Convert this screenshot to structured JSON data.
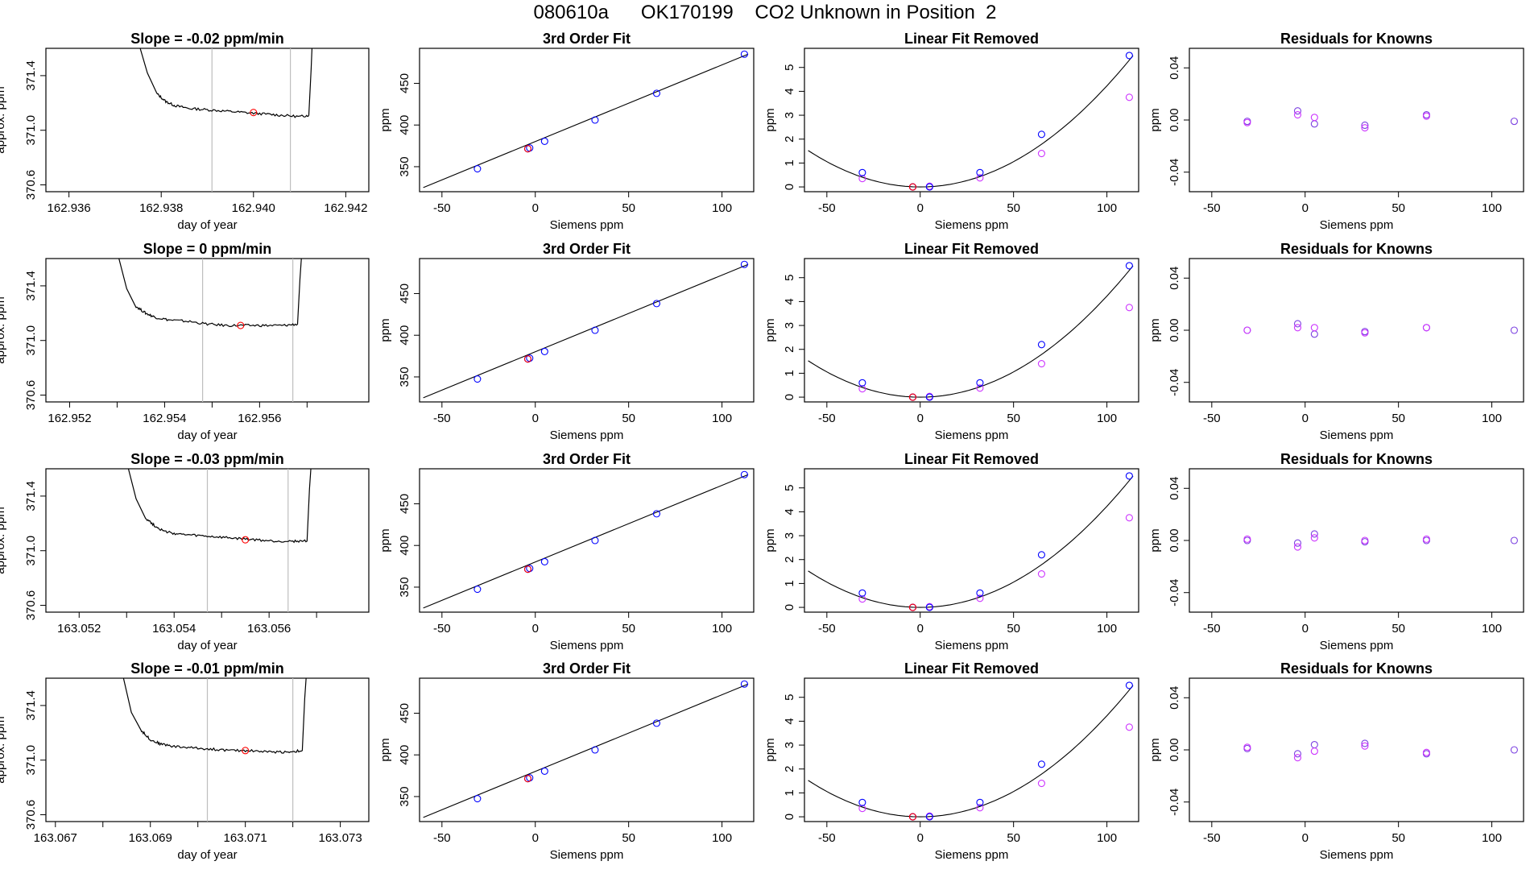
{
  "figure": {
    "title": "080610a      OK170199    CO2 Unknown in Position  2"
  },
  "colors": {
    "trace": "#000000",
    "marker_red": "#ff0000",
    "marker_blue": "#0000ff",
    "marker_magenta": "#cc33ff",
    "vline": "#bebebe",
    "residual": "#7a3fe0"
  },
  "chart_data": [
    {
      "type": "line",
      "row": 0,
      "col": 0,
      "title": "Slope =  -0.02  ppm/min",
      "xlabel": "day of year",
      "ylabel": "approx. ppm",
      "xlim": [
        162.9355,
        162.9425
      ],
      "ylim": [
        370.55,
        371.6
      ],
      "xticks": [
        162.936,
        162.938,
        162.94,
        162.942
      ],
      "xtick_labels": [
        "162.936",
        "162.938",
        "162.940",
        "162.942"
      ],
      "yticks": [
        370.6,
        371.0,
        371.4
      ],
      "ytick_labels": [
        "370.6",
        "371.0",
        "371.4"
      ],
      "x": [
        162.9375,
        162.9377,
        162.9379,
        162.9381,
        162.9383,
        162.9386,
        162.939,
        162.9394,
        162.9398,
        162.9402,
        162.9406,
        162.941,
        162.9412,
        162.94125,
        162.94128
      ],
      "y": [
        371.65,
        371.42,
        371.27,
        371.21,
        371.18,
        371.16,
        371.15,
        371.14,
        371.13,
        371.12,
        371.11,
        371.1,
        371.11,
        371.45,
        371.7
      ],
      "vlines": [
        162.9391,
        162.9408
      ],
      "marker": {
        "x": 162.94,
        "y": 371.13
      }
    },
    {
      "type": "scatter",
      "row": 0,
      "col": 1,
      "title": "3rd Order Fit",
      "xlabel": "Siemens ppm",
      "ylabel": "ppm",
      "xlim": [
        -62,
        117
      ],
      "ylim": [
        320,
        492
      ],
      "xticks": [
        -50,
        0,
        50,
        100
      ],
      "yticks": [
        350,
        400,
        450
      ],
      "line": {
        "x": [
          -60,
          114
        ],
        "y": [
          325,
          485
        ]
      },
      "points": [
        {
          "x": -31,
          "y": 347.5
        },
        {
          "x": -4,
          "y": 371.5
        },
        {
          "x": -3,
          "y": 372.5
        },
        {
          "x": 5,
          "y": 380.5
        },
        {
          "x": 32,
          "y": 406
        },
        {
          "x": 65,
          "y": 438
        },
        {
          "x": 112,
          "y": 485
        }
      ],
      "marker": {
        "x": -4,
        "y": 371.5
      }
    },
    {
      "type": "scatter",
      "row": 0,
      "col": 2,
      "title": "Linear Fit Removed",
      "xlabel": "Siemens ppm",
      "ylabel": "ppm",
      "xlim": [
        -62,
        117
      ],
      "ylim": [
        -0.2,
        5.8
      ],
      "xticks": [
        -50,
        0,
        50,
        100
      ],
      "yticks": [
        0,
        1,
        2,
        3,
        4,
        5
      ],
      "curve_coef": 0.000423,
      "curve_x": [
        -60,
        114
      ],
      "blue": [
        {
          "x": -31,
          "y": 0.6
        },
        {
          "x": -4,
          "y": 0
        },
        {
          "x": 5,
          "y": 0
        },
        {
          "x": 32,
          "y": 0.6
        },
        {
          "x": 65,
          "y": 2.2
        },
        {
          "x": 112,
          "y": 5.5
        }
      ],
      "magenta": [
        {
          "x": -31,
          "y": 0.35
        },
        {
          "x": -4,
          "y": 0
        },
        {
          "x": 5,
          "y": 0.03
        },
        {
          "x": 32,
          "y": 0.38
        },
        {
          "x": 65,
          "y": 1.4
        },
        {
          "x": 112,
          "y": 3.75
        }
      ],
      "marker": {
        "x": -4,
        "y": 0
      }
    },
    {
      "type": "scatter",
      "row": 0,
      "col": 3,
      "title": "Residuals for Knowns",
      "xlabel": "Siemens ppm",
      "ylabel": "ppm",
      "xlim": [
        -62,
        117
      ],
      "ylim": [
        -0.055,
        0.055
      ],
      "xticks": [
        -50,
        0,
        50,
        100
      ],
      "yticks": [
        -0.04,
        0,
        0.04
      ],
      "ytick_labels": [
        "-0.04",
        "0.00",
        "0.04"
      ],
      "points": [
        {
          "x": -31,
          "y": -0.001
        },
        {
          "x": -31,
          "y": -0.002
        },
        {
          "x": -4,
          "y": 0.007
        },
        {
          "x": -4,
          "y": 0.004
        },
        {
          "x": 5,
          "y": -0.003
        },
        {
          "x": 5,
          "y": 0.002
        },
        {
          "x": 32,
          "y": -0.004
        },
        {
          "x": 32,
          "y": -0.006
        },
        {
          "x": 65,
          "y": 0.004
        },
        {
          "x": 65,
          "y": 0.003
        },
        {
          "x": 112,
          "y": -0.001
        }
      ]
    },
    {
      "type": "line",
      "row": 1,
      "col": 0,
      "title": "Slope =  0  ppm/min",
      "xlabel": "day of year",
      "ylabel": "approx. ppm",
      "xlim": [
        162.9515,
        162.9583
      ],
      "ylim": [
        370.55,
        371.6
      ],
      "xticks": [
        162.952,
        162.954,
        162.956
      ],
      "xtick_labels": [
        "162.952",
        "162.954",
        "162.956"
      ],
      "minor_xticks": [
        162.953,
        162.955,
        162.957
      ],
      "yticks": [
        370.6,
        371.0,
        371.4
      ],
      "ytick_labels": [
        "370.6",
        "371.0",
        "371.4"
      ],
      "x": [
        162.953,
        162.9532,
        162.9534,
        162.9536,
        162.9538,
        162.9541,
        162.9545,
        162.9549,
        162.9553,
        162.9557,
        162.9561,
        162.9565,
        162.9568,
        162.95685,
        162.9569
      ],
      "y": [
        371.65,
        371.38,
        371.25,
        371.2,
        371.17,
        371.15,
        371.14,
        371.12,
        371.11,
        371.11,
        371.11,
        371.11,
        371.12,
        371.45,
        371.7
      ],
      "vlines": [
        162.9548,
        162.9567
      ],
      "marker": {
        "x": 162.9556,
        "y": 371.11
      }
    },
    {
      "type": "scatter",
      "row": 1,
      "col": 1,
      "title": "3rd Order Fit",
      "xlabel": "Siemens ppm",
      "ylabel": "ppm",
      "xlim": [
        -62,
        117
      ],
      "ylim": [
        320,
        492
      ],
      "xticks": [
        -50,
        0,
        50,
        100
      ],
      "yticks": [
        350,
        400,
        450
      ],
      "line": {
        "x": [
          -60,
          114
        ],
        "y": [
          325,
          485
        ]
      },
      "points": [
        {
          "x": -31,
          "y": 347.5
        },
        {
          "x": -4,
          "y": 371.5
        },
        {
          "x": -3,
          "y": 372.5
        },
        {
          "x": 5,
          "y": 380.5
        },
        {
          "x": 32,
          "y": 406
        },
        {
          "x": 65,
          "y": 438
        },
        {
          "x": 112,
          "y": 485
        }
      ],
      "marker": {
        "x": -4,
        "y": 371.5
      }
    },
    {
      "type": "scatter",
      "row": 1,
      "col": 2,
      "title": "Linear Fit Removed",
      "xlabel": "Siemens ppm",
      "ylabel": "ppm",
      "xlim": [
        -62,
        117
      ],
      "ylim": [
        -0.2,
        5.8
      ],
      "xticks": [
        -50,
        0,
        50,
        100
      ],
      "yticks": [
        0,
        1,
        2,
        3,
        4,
        5
      ],
      "curve_coef": 0.000423,
      "curve_x": [
        -60,
        114
      ],
      "blue": [
        {
          "x": -31,
          "y": 0.6
        },
        {
          "x": -4,
          "y": 0
        },
        {
          "x": 5,
          "y": 0
        },
        {
          "x": 32,
          "y": 0.6
        },
        {
          "x": 65,
          "y": 2.2
        },
        {
          "x": 112,
          "y": 5.5
        }
      ],
      "magenta": [
        {
          "x": -31,
          "y": 0.35
        },
        {
          "x": -4,
          "y": 0
        },
        {
          "x": 5,
          "y": 0.03
        },
        {
          "x": 32,
          "y": 0.38
        },
        {
          "x": 65,
          "y": 1.4
        },
        {
          "x": 112,
          "y": 3.75
        }
      ],
      "marker": {
        "x": -4,
        "y": 0
      }
    },
    {
      "type": "scatter",
      "row": 1,
      "col": 3,
      "title": "Residuals for Knowns",
      "xlabel": "Siemens ppm",
      "ylabel": "ppm",
      "xlim": [
        -62,
        117
      ],
      "ylim": [
        -0.055,
        0.055
      ],
      "xticks": [
        -50,
        0,
        50,
        100
      ],
      "yticks": [
        -0.04,
        0,
        0.04
      ],
      "ytick_labels": [
        "-0.04",
        "0.00",
        "0.04"
      ],
      "points": [
        {
          "x": -31,
          "y": 0
        },
        {
          "x": -31,
          "y": 0
        },
        {
          "x": -4,
          "y": 0.005
        },
        {
          "x": -4,
          "y": 0.002
        },
        {
          "x": 5,
          "y": -0.003
        },
        {
          "x": 5,
          "y": 0.002
        },
        {
          "x": 32,
          "y": -0.001
        },
        {
          "x": 32,
          "y": -0.002
        },
        {
          "x": 65,
          "y": 0.002
        },
        {
          "x": 65,
          "y": 0.002
        },
        {
          "x": 112,
          "y": 0
        }
      ]
    },
    {
      "type": "line",
      "row": 2,
      "col": 0,
      "title": "Slope =  -0.03  ppm/min",
      "xlabel": "day of year",
      "ylabel": "approx. ppm",
      "xlim": [
        163.0513,
        163.0581
      ],
      "ylim": [
        370.55,
        371.6
      ],
      "xticks": [
        163.052,
        163.054,
        163.056
      ],
      "xtick_labels": [
        "163.052",
        "163.054",
        "163.056"
      ],
      "minor_xticks": [
        163.053,
        163.055,
        163.057
      ],
      "yticks": [
        370.6,
        371.0,
        371.4
      ],
      "ytick_labels": [
        "370.6",
        "371.0",
        "371.4"
      ],
      "x": [
        163.053,
        163.0532,
        163.0534,
        163.0536,
        163.0538,
        163.0541,
        163.0545,
        163.0549,
        163.0553,
        163.0557,
        163.0561,
        163.0565,
        163.0568,
        163.05685,
        163.0569
      ],
      "y": [
        371.65,
        371.38,
        371.24,
        371.18,
        371.14,
        371.12,
        371.11,
        371.1,
        371.09,
        371.08,
        371.07,
        371.07,
        371.07,
        371.45,
        371.7
      ],
      "vlines": [
        163.0547,
        163.0564
      ],
      "marker": {
        "x": 163.0555,
        "y": 371.08
      }
    },
    {
      "type": "scatter",
      "row": 2,
      "col": 1,
      "title": "3rd Order Fit",
      "xlabel": "Siemens ppm",
      "ylabel": "ppm",
      "xlim": [
        -62,
        117
      ],
      "ylim": [
        320,
        492
      ],
      "xticks": [
        -50,
        0,
        50,
        100
      ],
      "yticks": [
        350,
        400,
        450
      ],
      "line": {
        "x": [
          -60,
          114
        ],
        "y": [
          325,
          485
        ]
      },
      "points": [
        {
          "x": -31,
          "y": 347.5
        },
        {
          "x": -4,
          "y": 371.5
        },
        {
          "x": -3,
          "y": 372.5
        },
        {
          "x": 5,
          "y": 380.5
        },
        {
          "x": 32,
          "y": 406
        },
        {
          "x": 65,
          "y": 438
        },
        {
          "x": 112,
          "y": 485
        }
      ],
      "marker": {
        "x": -4,
        "y": 371.5
      }
    },
    {
      "type": "scatter",
      "row": 2,
      "col": 2,
      "title": "Linear Fit Removed",
      "xlabel": "Siemens ppm",
      "ylabel": "ppm",
      "xlim": [
        -62,
        117
      ],
      "ylim": [
        -0.2,
        5.8
      ],
      "xticks": [
        -50,
        0,
        50,
        100
      ],
      "yticks": [
        0,
        1,
        2,
        3,
        4,
        5
      ],
      "curve_coef": 0.000423,
      "curve_x": [
        -60,
        114
      ],
      "blue": [
        {
          "x": -31,
          "y": 0.6
        },
        {
          "x": -4,
          "y": 0
        },
        {
          "x": 5,
          "y": 0
        },
        {
          "x": 32,
          "y": 0.6
        },
        {
          "x": 65,
          "y": 2.2
        },
        {
          "x": 112,
          "y": 5.5
        }
      ],
      "magenta": [
        {
          "x": -31,
          "y": 0.35
        },
        {
          "x": -4,
          "y": 0
        },
        {
          "x": 5,
          "y": 0.03
        },
        {
          "x": 32,
          "y": 0.38
        },
        {
          "x": 65,
          "y": 1.4
        },
        {
          "x": 112,
          "y": 3.75
        }
      ],
      "marker": {
        "x": -4,
        "y": 0
      }
    },
    {
      "type": "scatter",
      "row": 2,
      "col": 3,
      "title": "Residuals for Knowns",
      "xlabel": "Siemens ppm",
      "ylabel": "ppm",
      "xlim": [
        -62,
        117
      ],
      "ylim": [
        -0.055,
        0.055
      ],
      "xticks": [
        -50,
        0,
        50,
        100
      ],
      "yticks": [
        -0.04,
        0,
        0.04
      ],
      "ytick_labels": [
        "-0.04",
        "0.00",
        "0.04"
      ],
      "points": [
        {
          "x": -31,
          "y": 0
        },
        {
          "x": -31,
          "y": 0.001
        },
        {
          "x": -4,
          "y": -0.002
        },
        {
          "x": -4,
          "y": -0.005
        },
        {
          "x": 5,
          "y": 0.005
        },
        {
          "x": 5,
          "y": 0.002
        },
        {
          "x": 32,
          "y": -0.001
        },
        {
          "x": 32,
          "y": 0
        },
        {
          "x": 65,
          "y": 0
        },
        {
          "x": 65,
          "y": 0.001
        },
        {
          "x": 112,
          "y": 0
        }
      ]
    },
    {
      "type": "line",
      "row": 3,
      "col": 0,
      "title": "Slope =  -0.01  ppm/min",
      "xlabel": "day of year",
      "ylabel": "approx. ppm",
      "xlim": [
        163.0668,
        163.0736
      ],
      "ylim": [
        370.55,
        371.6
      ],
      "xticks": [
        163.067,
        163.069,
        163.071,
        163.073
      ],
      "xtick_labels": [
        "163.067",
        "163.069",
        "163.071",
        "163.073"
      ],
      "minor_xticks": [
        163.068,
        163.07,
        163.072
      ],
      "yticks": [
        370.6,
        371.0,
        371.4
      ],
      "ytick_labels": [
        "370.6",
        "371.0",
        "371.4"
      ],
      "x": [
        163.0684,
        163.0686,
        163.0688,
        163.069,
        163.0692,
        163.0695,
        163.0699,
        163.0703,
        163.0707,
        163.0711,
        163.0715,
        163.0719,
        163.0722,
        163.07225,
        163.0723
      ],
      "y": [
        371.65,
        371.35,
        371.22,
        371.15,
        371.12,
        371.1,
        371.09,
        371.08,
        371.07,
        371.07,
        371.06,
        371.06,
        371.07,
        371.45,
        371.7
      ],
      "vlines": [
        163.0702,
        163.072
      ],
      "marker": {
        "x": 163.071,
        "y": 371.07
      }
    },
    {
      "type": "scatter",
      "row": 3,
      "col": 1,
      "title": "3rd Order Fit",
      "xlabel": "Siemens ppm",
      "ylabel": "ppm",
      "xlim": [
        -62,
        117
      ],
      "ylim": [
        320,
        492
      ],
      "xticks": [
        -50,
        0,
        50,
        100
      ],
      "yticks": [
        350,
        400,
        450
      ],
      "line": {
        "x": [
          -60,
          114
        ],
        "y": [
          325,
          485
        ]
      },
      "points": [
        {
          "x": -31,
          "y": 347.5
        },
        {
          "x": -4,
          "y": 371.5
        },
        {
          "x": -3,
          "y": 372.5
        },
        {
          "x": 5,
          "y": 380.5
        },
        {
          "x": 32,
          "y": 406
        },
        {
          "x": 65,
          "y": 438
        },
        {
          "x": 112,
          "y": 485
        }
      ],
      "marker": {
        "x": -4,
        "y": 371.5
      }
    },
    {
      "type": "scatter",
      "row": 3,
      "col": 2,
      "title": "Linear Fit Removed",
      "xlabel": "Siemens ppm",
      "ylabel": "ppm",
      "xlim": [
        -62,
        117
      ],
      "ylim": [
        -0.2,
        5.8
      ],
      "xticks": [
        -50,
        0,
        50,
        100
      ],
      "yticks": [
        0,
        1,
        2,
        3,
        4,
        5
      ],
      "curve_coef": 0.000423,
      "curve_x": [
        -60,
        114
      ],
      "blue": [
        {
          "x": -31,
          "y": 0.6
        },
        {
          "x": -4,
          "y": 0
        },
        {
          "x": 5,
          "y": 0
        },
        {
          "x": 32,
          "y": 0.6
        },
        {
          "x": 65,
          "y": 2.2
        },
        {
          "x": 112,
          "y": 5.5
        }
      ],
      "magenta": [
        {
          "x": -31,
          "y": 0.35
        },
        {
          "x": -4,
          "y": 0
        },
        {
          "x": 5,
          "y": 0.03
        },
        {
          "x": 32,
          "y": 0.38
        },
        {
          "x": 65,
          "y": 1.4
        },
        {
          "x": 112,
          "y": 3.75
        }
      ],
      "marker": {
        "x": -4,
        "y": 0
      }
    },
    {
      "type": "scatter",
      "row": 3,
      "col": 3,
      "title": "Residuals for Knowns",
      "xlabel": "Siemens ppm",
      "ylabel": "ppm",
      "xlim": [
        -62,
        117
      ],
      "ylim": [
        -0.055,
        0.055
      ],
      "xticks": [
        -50,
        0,
        50,
        100
      ],
      "yticks": [
        -0.04,
        0,
        0.04
      ],
      "ytick_labels": [
        "-0.04",
        "0.00",
        "0.04"
      ],
      "points": [
        {
          "x": -31,
          "y": 0.001
        },
        {
          "x": -31,
          "y": 0.002
        },
        {
          "x": -4,
          "y": -0.003
        },
        {
          "x": -4,
          "y": -0.006
        },
        {
          "x": 5,
          "y": 0.004
        },
        {
          "x": 5,
          "y": -0.001
        },
        {
          "x": 32,
          "y": 0.005
        },
        {
          "x": 32,
          "y": 0.003
        },
        {
          "x": 65,
          "y": -0.003
        },
        {
          "x": 65,
          "y": -0.002
        },
        {
          "x": 112,
          "y": 0
        }
      ]
    }
  ]
}
